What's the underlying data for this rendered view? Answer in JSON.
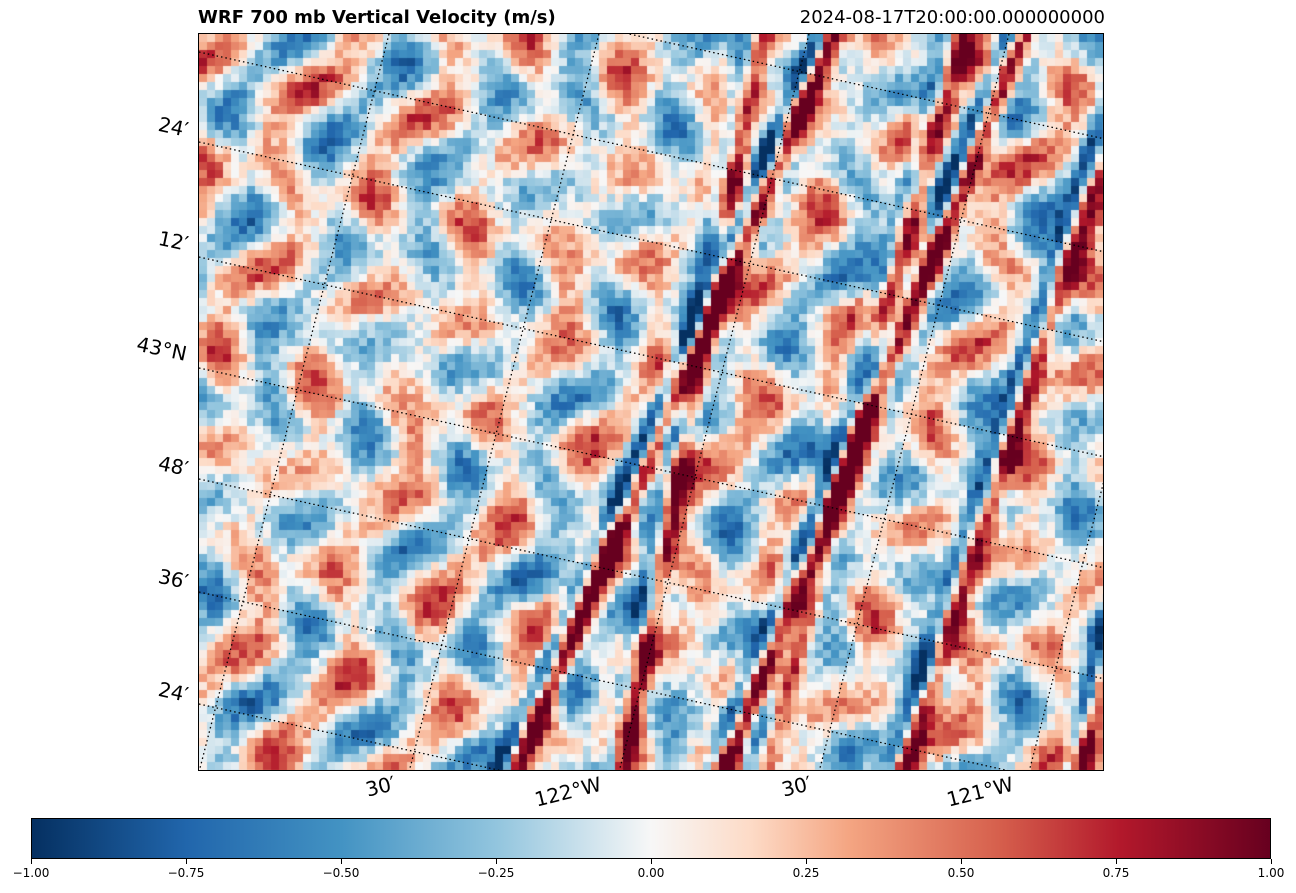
{
  "header": {
    "title": "WRF 700 mb Vertical Velocity (m/s)",
    "valid_time": "2024-08-17T20:00:00.000000000"
  },
  "map": {
    "lat_labels": [
      "24′",
      "12′",
      "43°N",
      "48′",
      "36′",
      "24′"
    ],
    "lon_labels": [
      "30′",
      "122°W",
      "30′",
      "121°W"
    ],
    "gridline_style": "dotted"
  },
  "colorbar": {
    "colormap": "RdBu_r",
    "min": -1.0,
    "max": 1.0,
    "tick_labels": [
      "−1.00",
      "−0.75",
      "−0.50",
      "−0.25",
      "0.00",
      "0.25",
      "0.50",
      "0.75",
      "1.00"
    ]
  },
  "chart_data": {
    "type": "heatmap",
    "title": "WRF 700 mb Vertical Velocity (m/s)",
    "subtitle": "2024-08-17T20:00:00.000000000",
    "variable": "vertical velocity",
    "units": "m/s",
    "vmin": -1.0,
    "vmax": 1.0,
    "colormap": "RdBu_r",
    "colors": {
      "low": "#053061",
      "mid": "#f7f7f7",
      "high": "#67001f"
    }
  }
}
